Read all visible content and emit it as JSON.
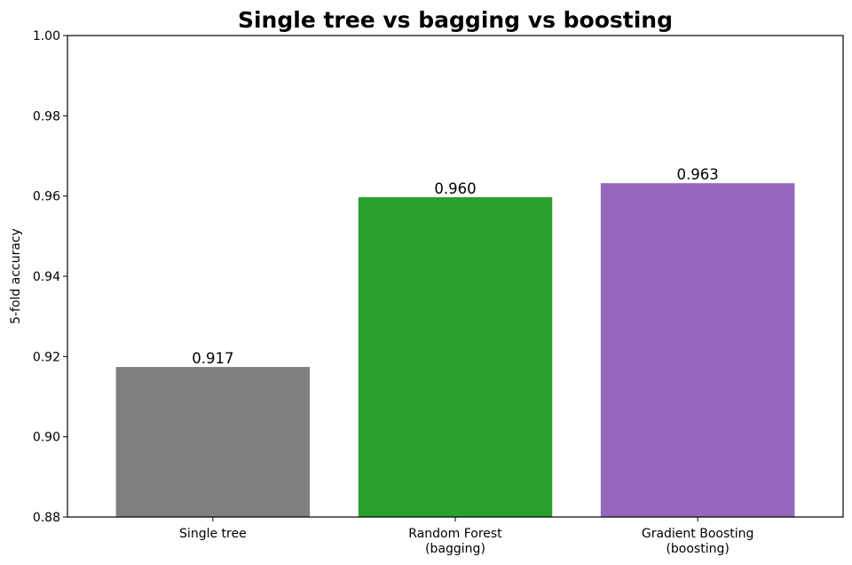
{
  "chart_data": {
    "type": "bar",
    "title": "Single tree vs bagging vs boosting",
    "xlabel": "",
    "ylabel": "5-fold accuracy",
    "categories": [
      [
        "Single tree"
      ],
      [
        "Random Forest",
        "(bagging)"
      ],
      [
        "Gradient Boosting",
        "(boosting)"
      ]
    ],
    "values": [
      0.9174,
      0.9597,
      0.9632
    ],
    "data_labels": [
      "0.917",
      "0.960",
      "0.963"
    ],
    "colors": [
      "#7f7f7f",
      "#2ca02c",
      "#9467bd"
    ],
    "ylim": [
      0.88,
      1.0
    ],
    "yticks": [
      "0.88",
      "0.90",
      "0.92",
      "0.94",
      "0.96",
      "0.98",
      "1.00"
    ],
    "grid": false,
    "legend": null
  }
}
